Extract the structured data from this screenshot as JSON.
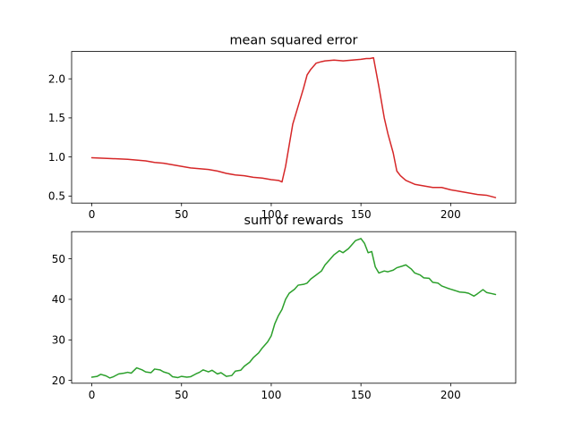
{
  "colors": {
    "mse_line": "#d62728",
    "rewards_line": "#2ca02c"
  },
  "chart_data": [
    {
      "type": "line",
      "title": "mean squared error",
      "xlabel": "",
      "ylabel": "",
      "xlim": [
        -11.25,
        236.25
      ],
      "ylim": [
        0.41,
        2.35
      ],
      "xticks": [
        0,
        50,
        100,
        150,
        200
      ],
      "yticks": [
        0.5,
        1.0,
        1.5,
        2.0
      ],
      "ytick_labels": [
        "0.5",
        "1.0",
        "1.5",
        "2.0"
      ],
      "grid": false,
      "series": [
        {
          "color": "#d62728",
          "x": [
            0,
            10,
            20,
            25,
            30,
            35,
            40,
            45,
            50,
            55,
            60,
            65,
            70,
            75,
            80,
            85,
            90,
            95,
            100,
            104,
            106,
            108,
            110,
            112,
            115,
            118,
            120,
            122,
            125,
            128,
            130,
            135,
            140,
            145,
            150,
            153,
            155,
            157,
            160,
            163,
            165,
            168,
            170,
            172,
            175,
            180,
            185,
            190,
            195,
            200,
            205,
            210,
            215,
            220,
            225
          ],
          "values": [
            0.99,
            0.98,
            0.97,
            0.96,
            0.95,
            0.93,
            0.92,
            0.9,
            0.88,
            0.86,
            0.85,
            0.84,
            0.82,
            0.79,
            0.77,
            0.76,
            0.74,
            0.73,
            0.71,
            0.7,
            0.68,
            0.88,
            1.15,
            1.42,
            1.65,
            1.88,
            2.05,
            2.12,
            2.2,
            2.22,
            2.23,
            2.24,
            2.23,
            2.24,
            2.25,
            2.26,
            2.26,
            2.27,
            1.9,
            1.5,
            1.3,
            1.05,
            0.82,
            0.76,
            0.7,
            0.65,
            0.63,
            0.61,
            0.61,
            0.58,
            0.56,
            0.54,
            0.52,
            0.51,
            0.48
          ]
        }
      ]
    },
    {
      "type": "line",
      "title": "sum of rewards",
      "xlabel": "",
      "ylabel": "",
      "xlim": [
        -11.25,
        236.25
      ],
      "ylim": [
        19.3,
        56.7
      ],
      "xticks": [
        0,
        50,
        100,
        150,
        200
      ],
      "yticks": [
        20,
        30,
        40,
        50
      ],
      "ytick_labels": [
        "20",
        "30",
        "40",
        "50"
      ],
      "grid": false,
      "series": [
        {
          "color": "#2ca02c",
          "x": [
            0,
            3,
            5,
            8,
            10,
            12,
            15,
            18,
            20,
            22,
            25,
            28,
            30,
            33,
            35,
            38,
            40,
            43,
            45,
            48,
            50,
            53,
            55,
            58,
            60,
            62,
            65,
            67,
            70,
            72,
            75,
            78,
            80,
            83,
            85,
            88,
            90,
            93,
            95,
            98,
            100,
            102,
            104,
            106,
            108,
            110,
            113,
            115,
            118,
            120,
            122,
            125,
            128,
            130,
            133,
            135,
            138,
            140,
            143,
            145,
            147,
            150,
            152,
            154,
            156,
            158,
            160,
            163,
            165,
            168,
            170,
            173,
            175,
            178,
            180,
            183,
            185,
            188,
            190,
            193,
            195,
            198,
            200,
            203,
            205,
            208,
            210,
            213,
            215,
            218,
            220,
            223,
            225
          ],
          "values": [
            20.8,
            21.0,
            21.5,
            21.1,
            20.6,
            20.9,
            21.6,
            21.8,
            22.0,
            21.8,
            23.1,
            22.6,
            22.1,
            21.9,
            22.8,
            22.6,
            22.1,
            21.7,
            20.9,
            20.7,
            21.0,
            20.8,
            20.9,
            21.6,
            22.0,
            22.6,
            22.1,
            22.5,
            21.6,
            21.9,
            21.0,
            21.2,
            22.3,
            22.5,
            23.5,
            24.5,
            25.6,
            26.8,
            28.0,
            29.5,
            31.0,
            34.0,
            36.0,
            37.5,
            40.0,
            41.5,
            42.5,
            43.5,
            43.7,
            44.0,
            45.0,
            46.0,
            47.0,
            48.5,
            50.0,
            51.0,
            52.0,
            51.5,
            52.5,
            53.5,
            54.5,
            55.0,
            53.8,
            51.5,
            51.8,
            48.0,
            46.5,
            47.0,
            46.8,
            47.2,
            47.8,
            48.2,
            48.5,
            47.5,
            46.5,
            46.0,
            45.3,
            45.2,
            44.2,
            44.0,
            43.3,
            42.8,
            42.5,
            42.1,
            41.8,
            41.7,
            41.5,
            40.8,
            41.4,
            42.4,
            41.7,
            41.4,
            41.2
          ]
        }
      ]
    }
  ]
}
